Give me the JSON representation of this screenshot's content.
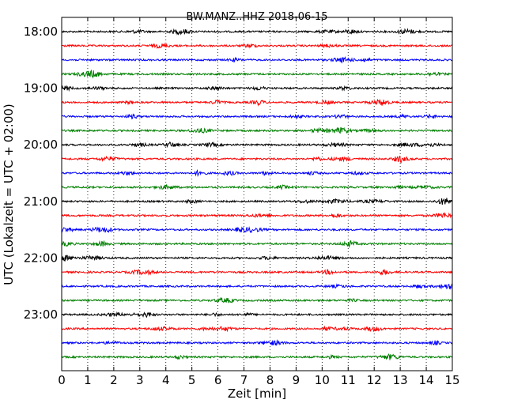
{
  "chart_data": {
    "type": "line",
    "title": "BW.MANZ..HHZ 2018-06-15",
    "xlabel": "Zeit  [min]",
    "ylabel": "UTC (Lokalzeit = UTC + 02:00)",
    "xlim": [
      0,
      15
    ],
    "x_ticks": [
      "0",
      "1",
      "2",
      "3",
      "4",
      "5",
      "6",
      "7",
      "8",
      "9",
      "10",
      "11",
      "12",
      "13",
      "14",
      "15"
    ],
    "y_ticks": [
      "18:00",
      "19:00",
      "20:00",
      "21:00",
      "22:00",
      "23:00"
    ],
    "grid": "vertical dotted lines at each minute",
    "legend": "none",
    "trace_interval_minutes": 15,
    "trace_colors": [
      "#000000",
      "#ff0000",
      "#0000ff",
      "#008000"
    ],
    "traces": [
      {
        "start": "18:00"
      },
      {
        "start": "18:15"
      },
      {
        "start": "18:30"
      },
      {
        "start": "18:45"
      },
      {
        "start": "19:00"
      },
      {
        "start": "19:15"
      },
      {
        "start": "19:30"
      },
      {
        "start": "19:45"
      },
      {
        "start": "20:00"
      },
      {
        "start": "20:15"
      },
      {
        "start": "20:30"
      },
      {
        "start": "20:45"
      },
      {
        "start": "21:00"
      },
      {
        "start": "21:15"
      },
      {
        "start": "21:30"
      },
      {
        "start": "21:45"
      },
      {
        "start": "22:00"
      },
      {
        "start": "22:15"
      },
      {
        "start": "22:30"
      },
      {
        "start": "22:45"
      },
      {
        "start": "23:00"
      },
      {
        "start": "23:15"
      },
      {
        "start": "23:30"
      },
      {
        "start": "23:45"
      }
    ]
  }
}
